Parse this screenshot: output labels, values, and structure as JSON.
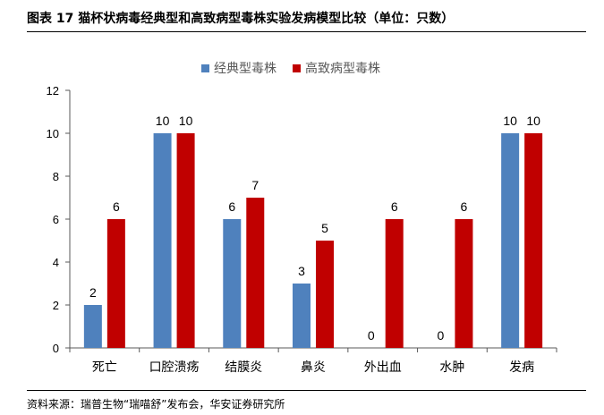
{
  "header": {
    "title": "图表 17 猫杯状病毒经典型和高致病型毒株实验发病模型比较（单位：只数）"
  },
  "footer": {
    "source": "资料来源：瑞普生物“瑞喵舒”发布会，华安证券研究所"
  },
  "colors": {
    "classic": "#4F81BD",
    "virulent": "#C00000",
    "axis": "#595959"
  },
  "chart_data": {
    "type": "bar",
    "categories": [
      "死亡",
      "口腔溃疡",
      "结膜炎",
      "鼻炎",
      "外出血",
      "水肿",
      "发病"
    ],
    "series": [
      {
        "name": "经典型毒株",
        "values": [
          2,
          10,
          6,
          3,
          0,
          0,
          10
        ]
      },
      {
        "name": "高致病型毒株",
        "values": [
          6,
          10,
          7,
          5,
          6,
          6,
          10
        ]
      }
    ],
    "ylim": [
      0,
      12
    ],
    "yticks": [
      0,
      2,
      4,
      6,
      8,
      10,
      12
    ],
    "xlabel": "",
    "ylabel": "",
    "legend_position": "top",
    "grid": false,
    "data_labels": true
  }
}
